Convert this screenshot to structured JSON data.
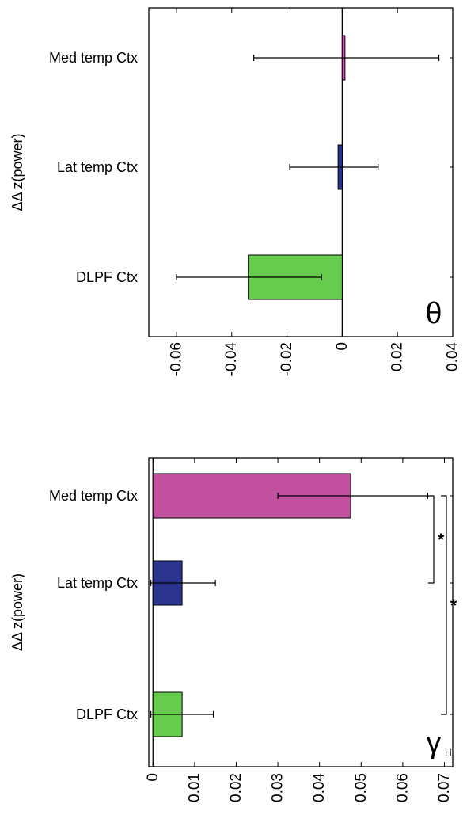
{
  "chart_data": [
    {
      "type": "bar",
      "orientation": "horizontal",
      "categories": [
        "Med temp Ctx",
        "Lat temp Ctx",
        "DLPF Ctx"
      ],
      "values": [
        0.001,
        -0.0015,
        -0.034
      ],
      "error_low": [
        -0.032,
        -0.019,
        -0.06
      ],
      "error_high": [
        0.035,
        0.013,
        -0.0075
      ],
      "colors": [
        "#d752c0",
        "#2b3590",
        "#66cc4d"
      ],
      "xlim": [
        -0.07,
        0.04
      ],
      "xticks": [
        "-0.06",
        "-0.04",
        "-0.02",
        "0",
        "0.02",
        "0.04"
      ],
      "xtick_values": [
        -0.06,
        -0.04,
        -0.02,
        0,
        0.02,
        0.04
      ],
      "ylabel": "ΔΔ z(power)",
      "panel_symbol": "θ",
      "grid": false
    },
    {
      "type": "bar",
      "orientation": "horizontal",
      "categories": [
        "Med temp Ctx",
        "Lat temp Ctx",
        "DLPF Ctx"
      ],
      "values": [
        0.0475,
        0.007,
        0.007
      ],
      "error_low": [
        0.03,
        -0.0005,
        -0.0005
      ],
      "error_high": [
        0.066,
        0.015,
        0.0145
      ],
      "colors": [
        "#c1519f",
        "#2b3590",
        "#66cc4d"
      ],
      "xlim": [
        -0.001,
        0.072
      ],
      "xticks": [
        "0",
        "0.01",
        "0.02",
        "0.03",
        "0.04",
        "0.05",
        "0.06",
        "0.07"
      ],
      "xtick_values": [
        0,
        0.01,
        0.02,
        0.03,
        0.04,
        0.05,
        0.06,
        0.07
      ],
      "ylabel": "ΔΔ z(power)",
      "panel_symbol": "γ",
      "panel_symbol_sub": "H",
      "significance": [
        {
          "from": "Med temp Ctx",
          "to": "Lat temp Ctx",
          "label": "*"
        },
        {
          "from": "Med temp Ctx",
          "to": "DLPF Ctx",
          "label": "*"
        }
      ],
      "grid": false
    }
  ]
}
